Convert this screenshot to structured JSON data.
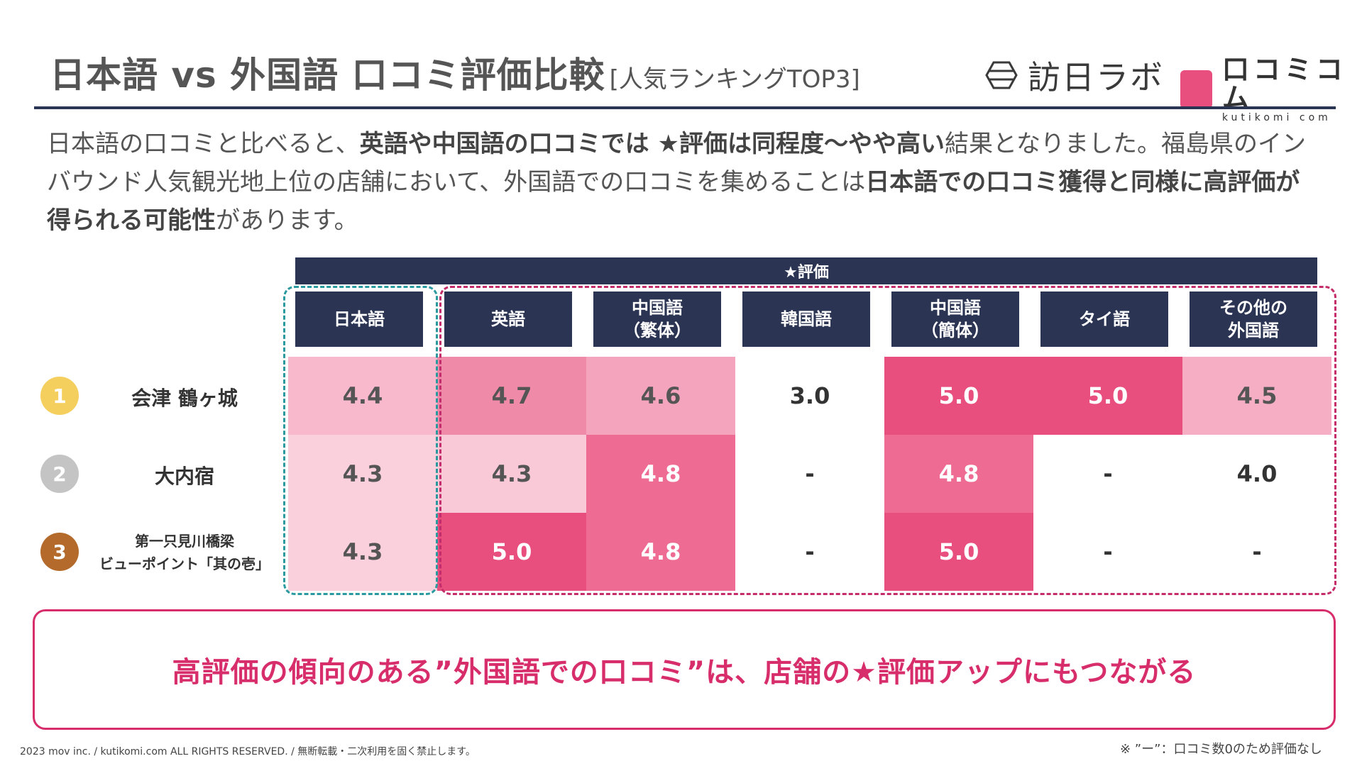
{
  "header": {
    "title": "日本語 vs 外国語 口コミ評価比較",
    "subtitle": "[人気ランキングTOP3]",
    "logo_hounichi": "訪日ラボ",
    "logo_kutikomi": "口コミコム",
    "logo_kutikomi_en": "kutikomi com"
  },
  "intro": {
    "p1": "日本語の口コミと比べると、",
    "b1": "英語や中国語の口コミでは ★評価は同程度〜やや高い",
    "p2": "結果となりました。福島県のインバウンド人気観光地上位の店舗において、外国語での口コミを集めることは",
    "b2": "日本語での口コミ獲得と同様に高評価が得られる可能性",
    "p3": "があります。"
  },
  "table": {
    "header": "★評価",
    "columns": [
      {
        "line1": "日本語",
        "line2": ""
      },
      {
        "line1": "英語",
        "line2": ""
      },
      {
        "line1": "中国語",
        "line2": "（繁体）"
      },
      {
        "line1": "韓国語",
        "line2": ""
      },
      {
        "line1": "中国語",
        "line2": "（簡体）"
      },
      {
        "line1": "タイ語",
        "line2": ""
      },
      {
        "line1": "その他の",
        "line2": "外国語"
      }
    ],
    "rows": [
      {
        "rank": "1",
        "rank_color": "#f5cf5e",
        "name1": "会津 鶴ヶ城",
        "name2": "",
        "values": [
          "4.4",
          "4.7",
          "4.6",
          "3.0",
          "5.0",
          "5.0",
          "4.5"
        ],
        "colors": [
          "#f8b9cd",
          "#f08aa9",
          "#f4a4bd",
          "#ffffff",
          "#e84e7e",
          "#e84e7e",
          "#f6aec4"
        ]
      },
      {
        "rank": "2",
        "rank_color": "#c4c4c4",
        "name1": "大内宿",
        "name2": "",
        "values": [
          "4.3",
          "4.3",
          "4.8",
          "-",
          "4.8",
          "-",
          "4.0"
        ],
        "colors": [
          "#fbd0dd",
          "#f9c9d7",
          "#ee6c94",
          "#ffffff",
          "#ee6c94",
          "#ffffff",
          "#ffffff"
        ]
      },
      {
        "rank": "3",
        "rank_color": "#b36a2a",
        "name1": "第一只見川橋梁",
        "name2": "ビューポイント「其の壱」",
        "values": [
          "4.3",
          "5.0",
          "4.8",
          "-",
          "5.0",
          "-",
          "-"
        ],
        "colors": [
          "#fbd0dd",
          "#e84e7e",
          "#ee6c94",
          "#ffffff",
          "#e84e7e",
          "#ffffff",
          "#ffffff"
        ]
      }
    ]
  },
  "conclusion": "高評価の傾向のある”外国語での口コミ”は、店舗の★評価アップにもつながる",
  "footer": "2023 mov inc. / kutikomi.com ALL RIGHTS RESERVED. / 無断転載・二次利用を固く禁止します。",
  "note": "※ ”ー”：口コミ数0のため評価なし"
}
